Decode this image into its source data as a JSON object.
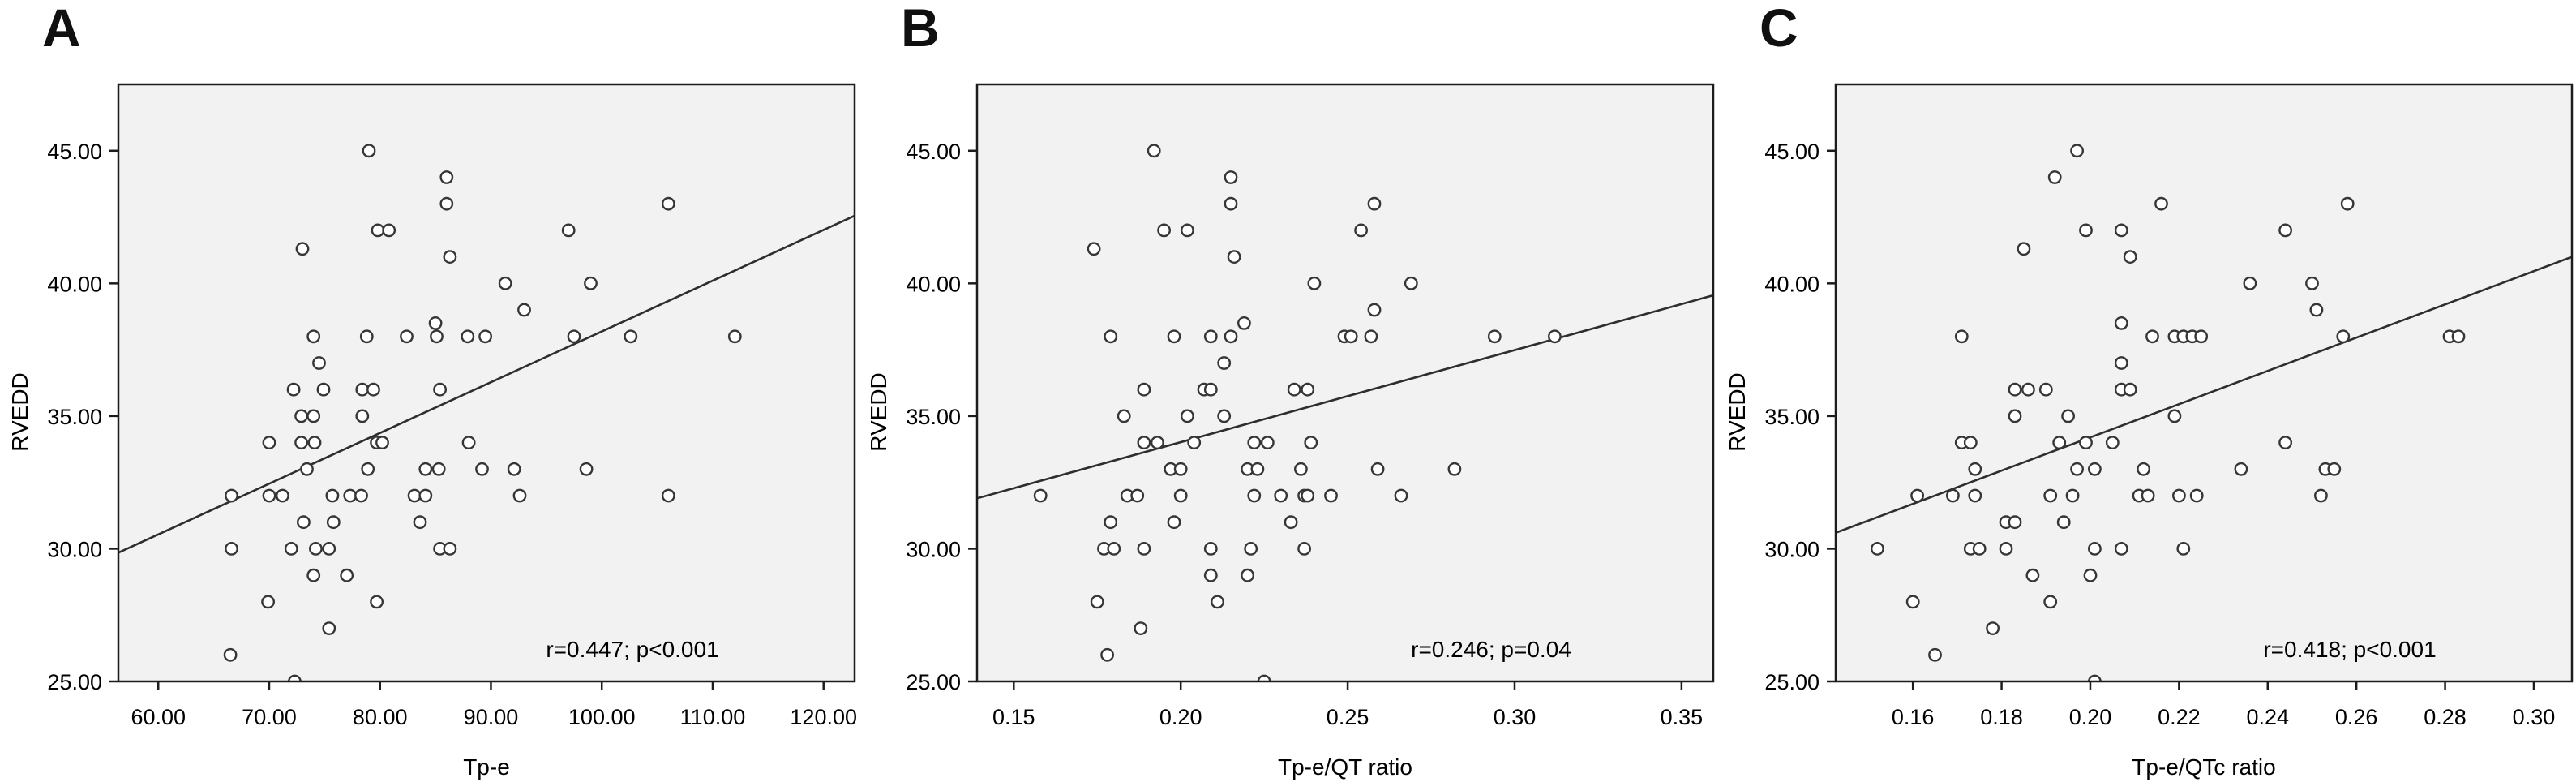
{
  "figure": {
    "description": "Three scatter plots of RVEDD versus Tp-e, Tp-e/QT ratio and Tp-e/QTc ratio with linear fit lines",
    "background_color": "#ffffff"
  },
  "styles": {
    "plot_bg": "#f2f2f2",
    "frame": "#1c1c1c",
    "tick": "#1c1c1c",
    "text": "#000000",
    "marker_stroke": "#363636",
    "marker_fill": "#ffffff",
    "fit_line": "#2e2e2e"
  },
  "chart_data": [
    {
      "type": "scatter",
      "panel_label": "A",
      "xlabel": "Tp-e",
      "ylabel": "RVEDD",
      "annotation": "r=0.447; p<0.001",
      "legend": "none",
      "grid": false,
      "xlim": [
        56.4,
        122.8
      ],
      "ylim": [
        25,
        47.5
      ],
      "xticks": [
        60,
        70,
        80,
        90,
        100,
        110,
        120
      ],
      "xtick_labels": [
        "60.00",
        "70.00",
        "80.00",
        "90.00",
        "100.00",
        "110.00",
        "120.00"
      ],
      "yticks": [
        25,
        30,
        35,
        40,
        45
      ],
      "ytick_labels": [
        "25.00",
        "30.00",
        "35.00",
        "40.00",
        "45.00"
      ],
      "fit_line": {
        "x1": 56.4,
        "y1": 29.85,
        "x2": 122.8,
        "y2": 42.55
      },
      "points": [
        [
          79,
          45
        ],
        [
          86,
          44
        ],
        [
          86,
          43
        ],
        [
          106,
          43
        ],
        [
          79.8,
          42
        ],
        [
          80.8,
          42
        ],
        [
          97,
          42
        ],
        [
          73,
          41.3
        ],
        [
          86.3,
          41
        ],
        [
          91.3,
          40
        ],
        [
          99,
          40
        ],
        [
          93,
          39
        ],
        [
          85,
          38.5
        ],
        [
          74,
          38
        ],
        [
          78.8,
          38
        ],
        [
          82.4,
          38
        ],
        [
          85.1,
          38
        ],
        [
          87.9,
          38
        ],
        [
          89.5,
          38
        ],
        [
          97.5,
          38
        ],
        [
          102.6,
          38
        ],
        [
          112,
          38
        ],
        [
          74.5,
          37
        ],
        [
          72.2,
          36
        ],
        [
          74.9,
          36
        ],
        [
          78.4,
          36
        ],
        [
          79.4,
          36
        ],
        [
          85.4,
          36
        ],
        [
          72.9,
          35
        ],
        [
          74,
          35
        ],
        [
          78.4,
          35
        ],
        [
          70,
          34
        ],
        [
          72.9,
          34
        ],
        [
          74.1,
          34
        ],
        [
          79.7,
          34
        ],
        [
          80.2,
          34
        ],
        [
          88,
          34
        ],
        [
          73.4,
          33
        ],
        [
          78.9,
          33
        ],
        [
          84.1,
          33
        ],
        [
          85.3,
          33
        ],
        [
          89.2,
          33
        ],
        [
          92.1,
          33
        ],
        [
          98.6,
          33
        ],
        [
          66.6,
          32
        ],
        [
          70,
          32
        ],
        [
          71.2,
          32
        ],
        [
          75.7,
          32
        ],
        [
          77.3,
          32
        ],
        [
          78.3,
          32
        ],
        [
          83.1,
          32
        ],
        [
          84.1,
          32
        ],
        [
          92.6,
          32
        ],
        [
          106,
          32
        ],
        [
          73.1,
          31
        ],
        [
          75.8,
          31
        ],
        [
          83.6,
          31
        ],
        [
          66.6,
          30
        ],
        [
          72,
          30
        ],
        [
          74.2,
          30
        ],
        [
          75.4,
          30
        ],
        [
          85.4,
          30
        ],
        [
          86.3,
          30
        ],
        [
          74,
          29
        ],
        [
          77,
          29
        ],
        [
          69.9,
          28
        ],
        [
          79.7,
          28
        ],
        [
          75.4,
          27
        ],
        [
          66.5,
          26
        ],
        [
          72.3,
          25
        ]
      ]
    },
    {
      "type": "scatter",
      "panel_label": "B",
      "xlabel": "Tp-e/QT ratio",
      "ylabel": "RVEDD",
      "annotation": "r=0.246; p=0.04",
      "legend": "none",
      "grid": false,
      "xlim": [
        0.139,
        0.3595
      ],
      "ylim": [
        25,
        47.5
      ],
      "xticks": [
        0.15,
        0.2,
        0.25,
        0.3,
        0.35
      ],
      "xtick_labels": [
        "0.15",
        "0.20",
        "0.25",
        "0.30",
        "0.35"
      ],
      "yticks": [
        25,
        30,
        35,
        40,
        45
      ],
      "ytick_labels": [
        "25.00",
        "30.00",
        "35.00",
        "40.00",
        "45.00"
      ],
      "fit_line": {
        "x1": 0.139,
        "y1": 31.9,
        "x2": 0.3595,
        "y2": 39.55
      },
      "points": [
        [
          0.192,
          45
        ],
        [
          0.215,
          44
        ],
        [
          0.215,
          43
        ],
        [
          0.258,
          43
        ],
        [
          0.195,
          42
        ],
        [
          0.202,
          42
        ],
        [
          0.254,
          42
        ],
        [
          0.174,
          41.3
        ],
        [
          0.216,
          41
        ],
        [
          0.24,
          40
        ],
        [
          0.269,
          40
        ],
        [
          0.258,
          39
        ],
        [
          0.219,
          38.5
        ],
        [
          0.179,
          38
        ],
        [
          0.198,
          38
        ],
        [
          0.209,
          38
        ],
        [
          0.215,
          38
        ],
        [
          0.249,
          38
        ],
        [
          0.251,
          38
        ],
        [
          0.257,
          38
        ],
        [
          0.294,
          38
        ],
        [
          0.312,
          38
        ],
        [
          0.213,
          37
        ],
        [
          0.189,
          36
        ],
        [
          0.207,
          36
        ],
        [
          0.209,
          36
        ],
        [
          0.234,
          36
        ],
        [
          0.238,
          36
        ],
        [
          0.183,
          35
        ],
        [
          0.202,
          35
        ],
        [
          0.213,
          35
        ],
        [
          0.189,
          34
        ],
        [
          0.193,
          34
        ],
        [
          0.204,
          34
        ],
        [
          0.222,
          34
        ],
        [
          0.226,
          34
        ],
        [
          0.239,
          34
        ],
        [
          0.197,
          33
        ],
        [
          0.2,
          33
        ],
        [
          0.22,
          33
        ],
        [
          0.223,
          33
        ],
        [
          0.236,
          33
        ],
        [
          0.259,
          33
        ],
        [
          0.282,
          33
        ],
        [
          0.158,
          32
        ],
        [
          0.184,
          32
        ],
        [
          0.187,
          32
        ],
        [
          0.2,
          32
        ],
        [
          0.222,
          32
        ],
        [
          0.23,
          32
        ],
        [
          0.237,
          32
        ],
        [
          0.238,
          32
        ],
        [
          0.245,
          32
        ],
        [
          0.266,
          32
        ],
        [
          0.179,
          31
        ],
        [
          0.198,
          31
        ],
        [
          0.233,
          31
        ],
        [
          0.177,
          30
        ],
        [
          0.18,
          30
        ],
        [
          0.189,
          30
        ],
        [
          0.209,
          30
        ],
        [
          0.221,
          30
        ],
        [
          0.237,
          30
        ],
        [
          0.209,
          29
        ],
        [
          0.22,
          29
        ],
        [
          0.175,
          28
        ],
        [
          0.211,
          28
        ],
        [
          0.188,
          27
        ],
        [
          0.178,
          26
        ],
        [
          0.225,
          25
        ]
      ]
    },
    {
      "type": "scatter",
      "panel_label": "C",
      "xlabel": "Tp-e/QTc ratio",
      "ylabel": "RVEDD",
      "annotation": "r=0.418; p<0.001",
      "legend": "none",
      "grid": false,
      "xlim": [
        0.1426,
        0.3086
      ],
      "ylim": [
        25,
        47.5
      ],
      "xticks": [
        0.16,
        0.18,
        0.2,
        0.22,
        0.24,
        0.26,
        0.28,
        0.3
      ],
      "xtick_labels": [
        "0.16",
        "0.18",
        "0.20",
        "0.22",
        "0.24",
        "0.26",
        "0.28",
        "0.30"
      ],
      "yticks": [
        25,
        30,
        35,
        40,
        45
      ],
      "ytick_labels": [
        "25.00",
        "30.00",
        "35.00",
        "40.00",
        "45.00"
      ],
      "fit_line": {
        "x1": 0.1426,
        "y1": 30.6,
        "x2": 0.3086,
        "y2": 41.0
      },
      "points": [
        [
          0.197,
          45
        ],
        [
          0.192,
          44
        ],
        [
          0.216,
          43
        ],
        [
          0.258,
          43
        ],
        [
          0.199,
          42
        ],
        [
          0.207,
          42
        ],
        [
          0.244,
          42
        ],
        [
          0.185,
          41.3
        ],
        [
          0.209,
          41
        ],
        [
          0.236,
          40
        ],
        [
          0.25,
          40
        ],
        [
          0.251,
          39
        ],
        [
          0.207,
          38.5
        ],
        [
          0.171,
          38
        ],
        [
          0.214,
          38
        ],
        [
          0.219,
          38
        ],
        [
          0.221,
          38
        ],
        [
          0.223,
          38
        ],
        [
          0.225,
          38
        ],
        [
          0.257,
          38
        ],
        [
          0.281,
          38
        ],
        [
          0.283,
          38
        ],
        [
          0.207,
          37
        ],
        [
          0.183,
          36
        ],
        [
          0.186,
          36
        ],
        [
          0.19,
          36
        ],
        [
          0.207,
          36
        ],
        [
          0.209,
          36
        ],
        [
          0.183,
          35
        ],
        [
          0.195,
          35
        ],
        [
          0.219,
          35
        ],
        [
          0.171,
          34
        ],
        [
          0.173,
          34
        ],
        [
          0.193,
          34
        ],
        [
          0.199,
          34
        ],
        [
          0.205,
          34
        ],
        [
          0.244,
          34
        ],
        [
          0.174,
          33
        ],
        [
          0.197,
          33
        ],
        [
          0.201,
          33
        ],
        [
          0.212,
          33
        ],
        [
          0.234,
          33
        ],
        [
          0.253,
          33
        ],
        [
          0.255,
          33
        ],
        [
          0.161,
          32
        ],
        [
          0.169,
          32
        ],
        [
          0.174,
          32
        ],
        [
          0.191,
          32
        ],
        [
          0.196,
          32
        ],
        [
          0.211,
          32
        ],
        [
          0.213,
          32
        ],
        [
          0.22,
          32
        ],
        [
          0.224,
          32
        ],
        [
          0.252,
          32
        ],
        [
          0.181,
          31
        ],
        [
          0.183,
          31
        ],
        [
          0.194,
          31
        ],
        [
          0.152,
          30
        ],
        [
          0.173,
          30
        ],
        [
          0.175,
          30
        ],
        [
          0.181,
          30
        ],
        [
          0.201,
          30
        ],
        [
          0.207,
          30
        ],
        [
          0.221,
          30
        ],
        [
          0.187,
          29
        ],
        [
          0.2,
          29
        ],
        [
          0.16,
          28
        ],
        [
          0.191,
          28
        ],
        [
          0.178,
          27
        ],
        [
          0.165,
          26
        ],
        [
          0.201,
          25
        ]
      ]
    }
  ]
}
